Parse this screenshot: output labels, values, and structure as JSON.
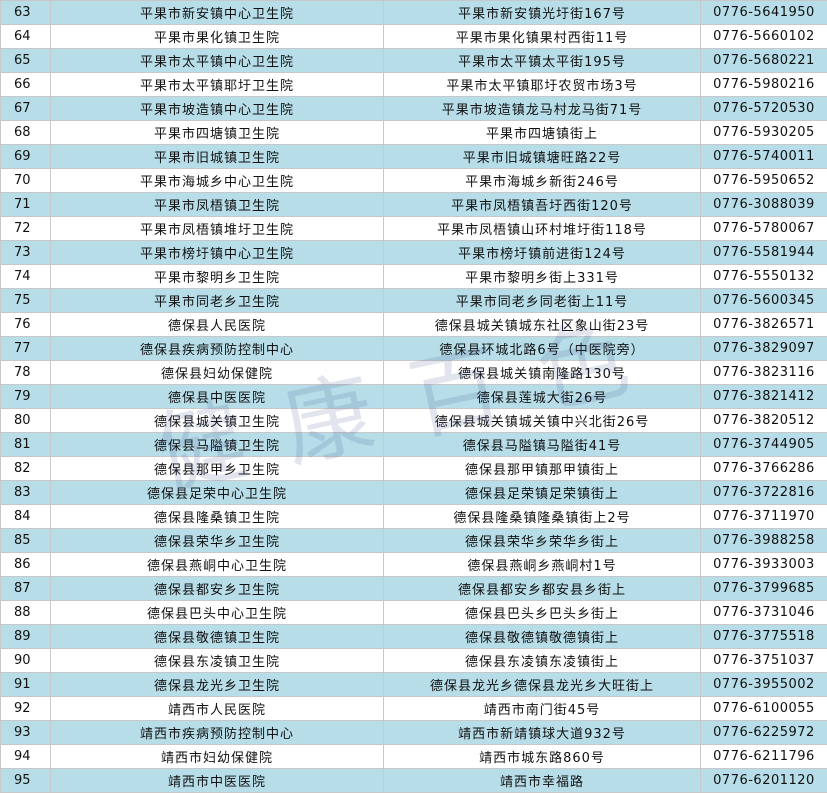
{
  "table": {
    "rows": [
      [
        "63",
        "平果市新安镇中心卫生院",
        "平果市新安镇光圩街167号",
        "0776-5641950"
      ],
      [
        "64",
        "平果市果化镇卫生院",
        "平果市果化镇果村西街11号",
        "0776-5660102"
      ],
      [
        "65",
        "平果市太平镇中心卫生院",
        "平果市太平镇太平街195号",
        "0776-5680221"
      ],
      [
        "66",
        "平果市太平镇耶圩卫生院",
        "平果市太平镇耶圩农贸市场3号",
        "0776-5980216"
      ],
      [
        "67",
        "平果市坡造镇中心卫生院",
        "平果市坡造镇龙马村龙马街71号",
        "0776-5720530"
      ],
      [
        "68",
        "平果市四塘镇卫生院",
        "平果市四塘镇街上",
        "0776-5930205"
      ],
      [
        "69",
        "平果市旧城镇卫生院",
        "平果市旧城镇塘旺路22号",
        "0776-5740011"
      ],
      [
        "70",
        "平果市海城乡中心卫生院",
        "平果市海城乡新街246号",
        "0776-5950652"
      ],
      [
        "71",
        "平果市凤梧镇卫生院",
        "平果市凤梧镇吾圩西街120号",
        "0776-3088039"
      ],
      [
        "72",
        "平果市凤梧镇堆圩卫生院",
        "平果市凤梧镇山环村堆圩街118号",
        "0776-5780067"
      ],
      [
        "73",
        "平果市榜圩镇中心卫生院",
        "平果市榜圩镇前进街124号",
        "0776-5581944"
      ],
      [
        "74",
        "平果市黎明乡卫生院",
        "平果市黎明乡街上331号",
        "0776-5550132"
      ],
      [
        "75",
        "平果市同老乡卫生院",
        "平果市同老乡同老街上11号",
        "0776-5600345"
      ],
      [
        "76",
        "德保县人民医院",
        "德保县城关镇城东社区象山街23号",
        "0776-3826571"
      ],
      [
        "77",
        "德保县疾病预防控制中心",
        "德保县环城北路6号（中医院旁）",
        "0776-3829097"
      ],
      [
        "78",
        "德保县妇幼保健院",
        "德保县城关镇南隆路130号",
        "0776-3823116"
      ],
      [
        "79",
        "德保县中医医院",
        "德保县莲城大街26号",
        "0776-3821412"
      ],
      [
        "80",
        "德保县城关镇卫生院",
        "德保县城关镇城关镇中兴北街26号",
        "0776-3820512"
      ],
      [
        "81",
        "德保县马隘镇卫生院",
        "德保县马隘镇马隘街41号",
        "0776-3744905"
      ],
      [
        "82",
        "德保县那甲乡卫生院",
        "德保县那甲镇那甲镇街上",
        "0776-3766286"
      ],
      [
        "83",
        "德保县足荣中心卫生院",
        "德保县足荣镇足荣镇街上",
        "0776-3722816"
      ],
      [
        "84",
        "德保县隆桑镇卫生院",
        "德保县隆桑镇隆桑镇街上2号",
        "0776-3711970"
      ],
      [
        "85",
        "德保县荣华乡卫生院",
        "德保县荣华乡荣华乡街上",
        "0776-3988258"
      ],
      [
        "86",
        "德保县燕峒中心卫生院",
        "德保县燕峒乡燕峒村1号",
        "0776-3933003"
      ],
      [
        "87",
        "德保县都安乡卫生院",
        "德保县都安乡都安县乡街上",
        "0776-3799685"
      ],
      [
        "88",
        "德保县巴头中心卫生院",
        "德保县巴头乡巴头乡街上",
        "0776-3731046"
      ],
      [
        "89",
        "德保县敬德镇卫生院",
        "德保县敬德镇敬德镇街上",
        "0776-3775518"
      ],
      [
        "90",
        "德保县东凌镇卫生院",
        "德保县东凌镇东凌镇街上",
        "0776-3751037"
      ],
      [
        "91",
        "德保县龙光乡卫生院",
        "德保县龙光乡德保县龙光乡大旺街上",
        "0776-3955002"
      ],
      [
        "92",
        "靖西市人民医院",
        "靖西市南门街45号",
        "0776-6100055"
      ],
      [
        "93",
        "靖西市疾病预防控制中心",
        "靖西市新靖镇球大道932号",
        "0776-6225972"
      ],
      [
        "94",
        "靖西市妇幼保健院",
        "靖西市城东路860号",
        "0776-6211796"
      ],
      [
        "95",
        "靖西市中医医院",
        "靖西市幸福路",
        "0776-6201120"
      ]
    ]
  },
  "watermark": "健康百色"
}
